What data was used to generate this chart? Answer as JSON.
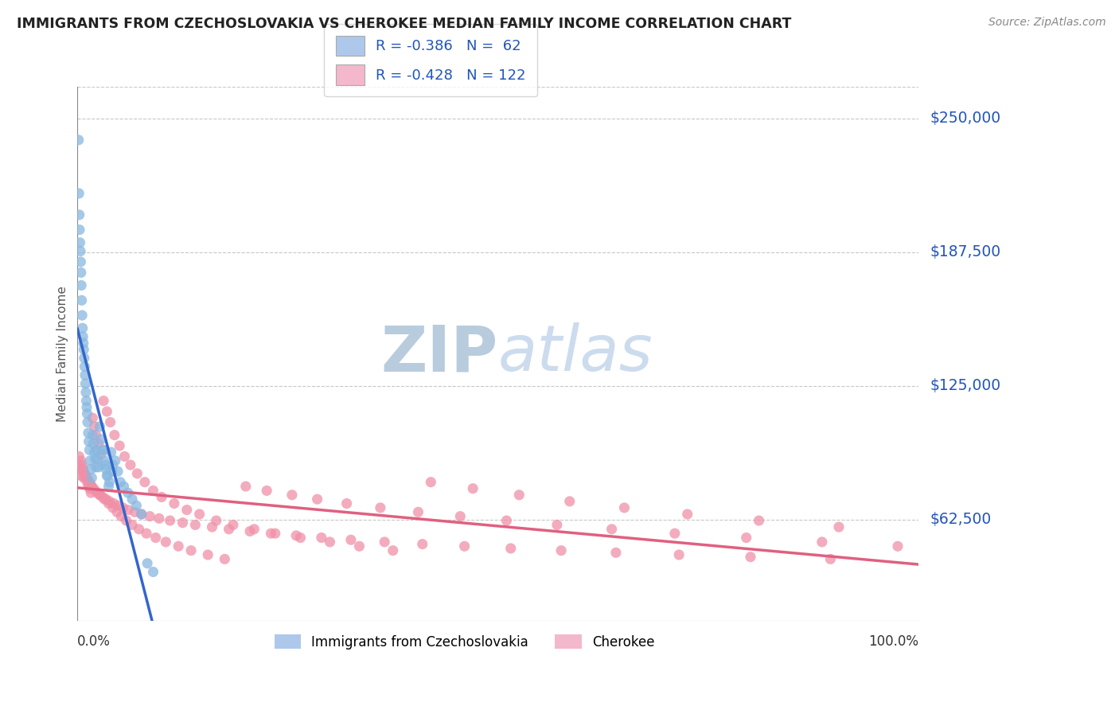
{
  "title": "IMMIGRANTS FROM CZECHOSLOVAKIA VS CHEROKEE MEDIAN FAMILY INCOME CORRELATION CHART",
  "source": "Source: ZipAtlas.com",
  "ylabel": "Median Family Income",
  "ytick_labels": [
    "$62,500",
    "$125,000",
    "$187,500",
    "$250,000"
  ],
  "ytick_values": [
    62500,
    125000,
    187500,
    250000
  ],
  "ymin": 15000,
  "ymax": 265000,
  "xmin": 0,
  "xmax": 100,
  "legend1_label": "R = -0.386   N =  62",
  "legend2_label": "R = -0.428   N = 122",
  "legend_patch_color1": "#adc8eb",
  "legend_patch_color2": "#f4b8cc",
  "legend_text_color": "#2255bb",
  "series1_color": "#88b8e0",
  "series2_color": "#f090a8",
  "regline1_color": "#3366cc",
  "regline2_color": "#e06080",
  "grid_color": "#c8c8c8",
  "title_color": "#222222",
  "yaxis_label_color": "#2255bb",
  "bottom_label1": "Immigrants from Czechoslovakia",
  "bottom_label2": "Cherokee",
  "watermark_top": "ZIP",
  "watermark_bottom": "atlas",
  "watermark_color": "#ccdcee",
  "blue_x": [
    0.13,
    0.18,
    0.22,
    0.25,
    0.3,
    0.35,
    0.38,
    0.42,
    0.46,
    0.5,
    0.55,
    0.6,
    0.65,
    0.7,
    0.75,
    0.8,
    0.85,
    0.9,
    0.95,
    1.0,
    1.05,
    1.1,
    1.15,
    1.2,
    1.28,
    1.35,
    1.42,
    1.5,
    1.6,
    1.7,
    1.8,
    1.9,
    2.0,
    2.1,
    2.2,
    2.3,
    2.4,
    2.5,
    2.65,
    2.8,
    3.0,
    3.2,
    3.4,
    3.6,
    3.8,
    4.0,
    4.2,
    4.5,
    4.8,
    5.1,
    5.5,
    6.0,
    6.5,
    7.0,
    7.6,
    8.3,
    9.0,
    3.1,
    3.3,
    3.5,
    3.7,
    4.1
  ],
  "blue_y": [
    240000,
    215000,
    205000,
    198000,
    192000,
    188000,
    183000,
    178000,
    172000,
    165000,
    158000,
    152000,
    148000,
    145000,
    142000,
    138000,
    134000,
    130000,
    126000,
    122000,
    118000,
    115000,
    112000,
    108000,
    103000,
    99000,
    95000,
    90000,
    86000,
    82000,
    102000,
    98000,
    94000,
    91000,
    87000,
    95000,
    91000,
    87000,
    106000,
    100000,
    95000,
    90000,
    86000,
    83000,
    80000,
    94000,
    88000,
    90000,
    85000,
    80000,
    78000,
    75000,
    72000,
    69000,
    65000,
    42000,
    38000,
    95000,
    88000,
    83000,
    78000,
    85000
  ],
  "pink_x": [
    0.2,
    0.4,
    0.55,
    0.7,
    0.85,
    1.0,
    1.15,
    1.3,
    1.45,
    1.6,
    1.8,
    2.0,
    2.2,
    2.5,
    2.8,
    3.1,
    3.5,
    3.9,
    4.4,
    5.0,
    5.6,
    6.3,
    7.1,
    8.0,
    9.0,
    10.0,
    11.5,
    13.0,
    14.5,
    16.5,
    18.5,
    21.0,
    23.5,
    26.5,
    30.0,
    33.5,
    37.5,
    42.0,
    47.0,
    52.5,
    58.5,
    65.0,
    72.5,
    81.0,
    90.5,
    0.3,
    0.5,
    0.65,
    0.8,
    0.95,
    1.1,
    1.25,
    1.4,
    1.55,
    1.7,
    1.9,
    2.1,
    2.35,
    2.65,
    3.0,
    3.4,
    3.8,
    4.3,
    4.8,
    5.4,
    6.0,
    6.8,
    7.6,
    8.6,
    9.7,
    11.0,
    12.5,
    14.0,
    16.0,
    18.0,
    20.5,
    23.0,
    26.0,
    29.0,
    32.5,
    36.5,
    41.0,
    46.0,
    51.5,
    57.5,
    64.0,
    71.5,
    80.0,
    89.5,
    2.7,
    3.2,
    3.7,
    4.2,
    4.7,
    5.2,
    5.8,
    6.5,
    7.3,
    8.2,
    9.3,
    10.5,
    12.0,
    13.5,
    15.5,
    17.5,
    20.0,
    22.5,
    25.5,
    28.5,
    32.0,
    36.0,
    40.5,
    45.5,
    51.0,
    57.0,
    63.5,
    71.0,
    79.5,
    88.5,
    97.5,
    0.45,
    0.75
  ],
  "pink_y": [
    92000,
    90000,
    88000,
    86000,
    84000,
    82000,
    80000,
    78000,
    77000,
    75000,
    110000,
    106000,
    102000,
    98000,
    93000,
    118000,
    113000,
    108000,
    102000,
    97000,
    92000,
    88000,
    84000,
    80000,
    76000,
    73000,
    70000,
    67000,
    65000,
    62000,
    60000,
    58000,
    56000,
    54000,
    52000,
    50000,
    48000,
    80000,
    77000,
    74000,
    71000,
    68000,
    65000,
    62000,
    59000,
    88000,
    86000,
    85000,
    84000,
    83000,
    82000,
    81000,
    80000,
    79000,
    78000,
    77000,
    76000,
    75000,
    74000,
    73000,
    72000,
    71000,
    70000,
    69000,
    68000,
    67000,
    66000,
    65000,
    64000,
    63000,
    62000,
    61000,
    60000,
    59000,
    58000,
    57000,
    56000,
    55000,
    54000,
    53000,
    52000,
    51000,
    50000,
    49000,
    48000,
    47000,
    46000,
    45000,
    44000,
    74000,
    72000,
    70000,
    68000,
    66000,
    64000,
    62000,
    60000,
    58000,
    56000,
    54000,
    52000,
    50000,
    48000,
    46000,
    44000,
    78000,
    76000,
    74000,
    72000,
    70000,
    68000,
    66000,
    64000,
    62000,
    60000,
    58000,
    56000,
    54000,
    52000,
    50000,
    83000,
    82000
  ]
}
